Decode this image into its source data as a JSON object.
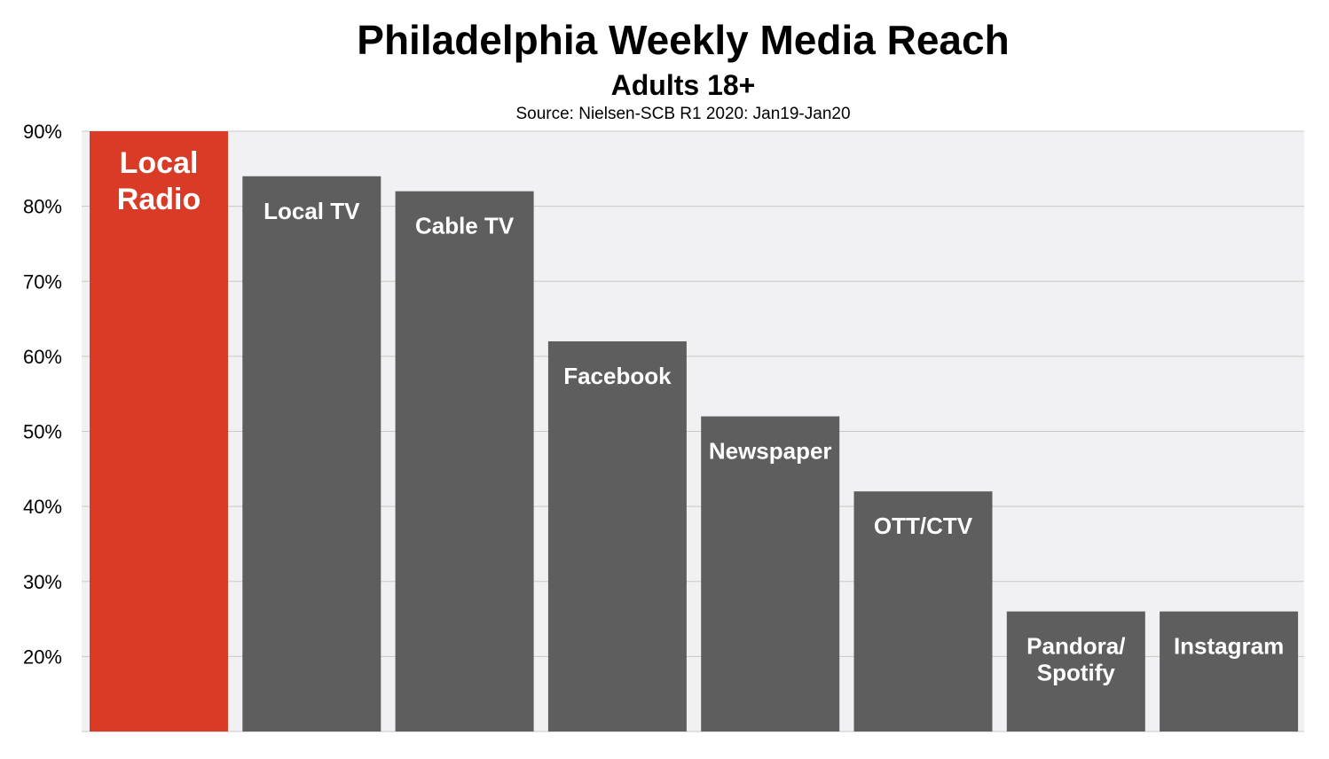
{
  "title": "Philadelphia Weekly Media Reach",
  "subtitle": "Adults 18+",
  "source": "Source: Nielsen-SCB R1 2020: Jan19-Jan20",
  "colors": {
    "highlight": "#d93b26",
    "bar": "#5e5e5e",
    "plot_background": "#f1f1f3",
    "gridline": "#c9c9c9"
  },
  "chart_data": {
    "type": "bar",
    "categories": [
      "Local Radio",
      "Local TV",
      "Cable TV",
      "Facebook",
      "Newspaper",
      "OTT/CTV",
      "Pandora/ Spotify",
      "Instagram"
    ],
    "bar_labels": [
      [
        "Local",
        "Radio"
      ],
      [
        "Local TV"
      ],
      [
        "Cable TV"
      ],
      [
        "Facebook"
      ],
      [
        "Newspaper"
      ],
      [
        "OTT/CTV"
      ],
      [
        "Pandora/",
        "Spotify"
      ],
      [
        "Instagram"
      ]
    ],
    "values": [
      90,
      84,
      82,
      62,
      52,
      42,
      26,
      26
    ],
    "highlight_index": 0,
    "ylim": [
      10,
      90
    ],
    "yticks": [
      20,
      30,
      40,
      50,
      60,
      70,
      80,
      90
    ],
    "ytick_labels": [
      "20%",
      "30%",
      "40%",
      "50%",
      "60%",
      "70%",
      "80%",
      "90%"
    ],
    "grid": true,
    "legend": "none",
    "xlabel": "",
    "ylabel": ""
  }
}
